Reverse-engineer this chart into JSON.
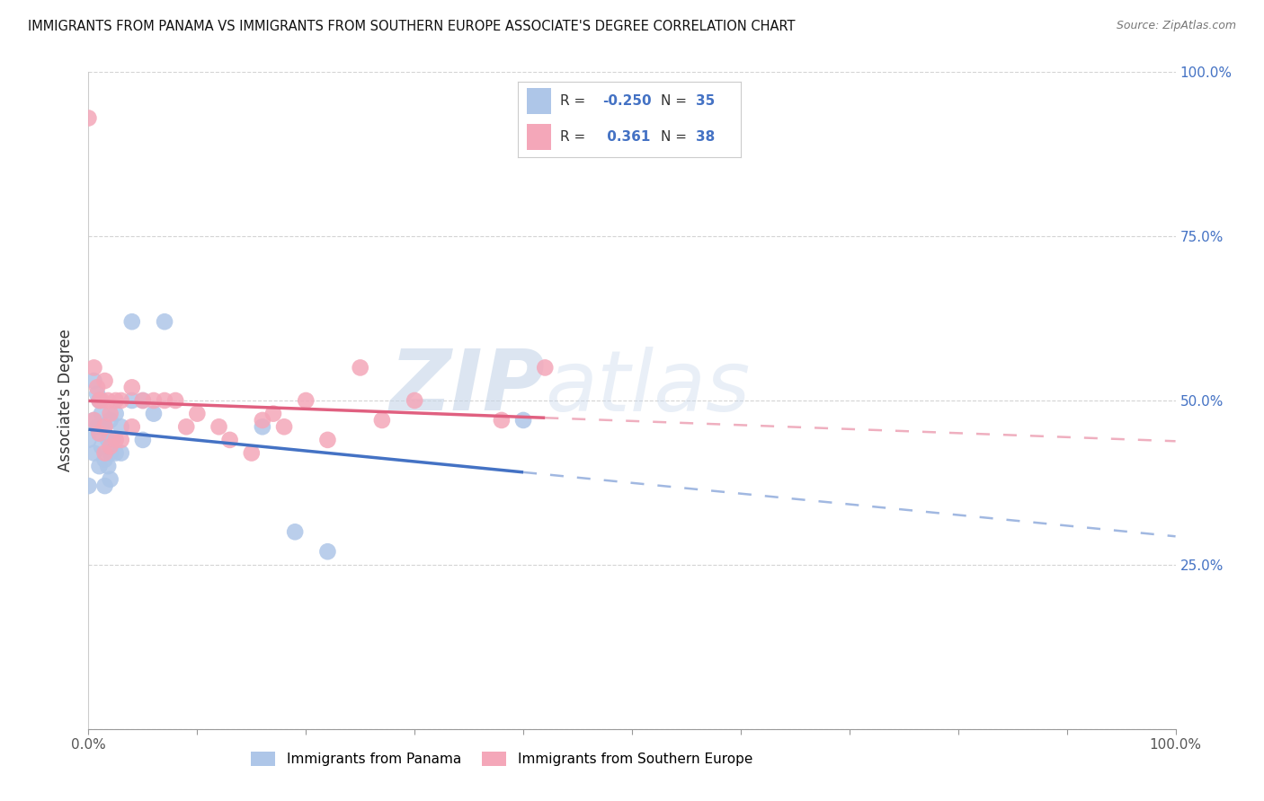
{
  "title": "IMMIGRANTS FROM PANAMA VS IMMIGRANTS FROM SOUTHERN EUROPE ASSOCIATE'S DEGREE CORRELATION CHART",
  "source": "Source: ZipAtlas.com",
  "ylabel": "Associate's Degree",
  "panama_R": -0.25,
  "panama_N": 35,
  "southern_europe_R": 0.361,
  "southern_europe_N": 38,
  "panama_color": "#aec6e8",
  "southern_europe_color": "#f4a7b9",
  "trend_panama_color": "#4472c4",
  "trend_southern_europe_color": "#e06080",
  "watermark_zip": "ZIP",
  "watermark_atlas": "atlas",
  "background_color": "#ffffff",
  "grid_color": "#d0d0d0",
  "panama_x": [
    0.0,
    0.0,
    0.005,
    0.005,
    0.005,
    0.008,
    0.008,
    0.01,
    0.01,
    0.01,
    0.012,
    0.012,
    0.015,
    0.015,
    0.015,
    0.018,
    0.018,
    0.02,
    0.02,
    0.02,
    0.022,
    0.025,
    0.025,
    0.03,
    0.03,
    0.04,
    0.04,
    0.05,
    0.05,
    0.06,
    0.07,
    0.16,
    0.19,
    0.22,
    0.4
  ],
  "panama_y": [
    0.44,
    0.37,
    0.53,
    0.47,
    0.42,
    0.51,
    0.46,
    0.5,
    0.45,
    0.4,
    0.48,
    0.43,
    0.46,
    0.41,
    0.37,
    0.44,
    0.4,
    0.47,
    0.42,
    0.38,
    0.44,
    0.48,
    0.42,
    0.46,
    0.42,
    0.62,
    0.5,
    0.5,
    0.44,
    0.48,
    0.62,
    0.46,
    0.3,
    0.27,
    0.47
  ],
  "southern_x": [
    0.0,
    0.005,
    0.005,
    0.008,
    0.01,
    0.01,
    0.012,
    0.015,
    0.015,
    0.015,
    0.018,
    0.02,
    0.02,
    0.025,
    0.025,
    0.03,
    0.03,
    0.04,
    0.04,
    0.05,
    0.06,
    0.07,
    0.08,
    0.09,
    0.1,
    0.12,
    0.13,
    0.15,
    0.16,
    0.17,
    0.18,
    0.2,
    0.22,
    0.25,
    0.27,
    0.3,
    0.38,
    0.42
  ],
  "southern_y": [
    0.93,
    0.55,
    0.47,
    0.52,
    0.5,
    0.45,
    0.5,
    0.53,
    0.46,
    0.42,
    0.5,
    0.48,
    0.43,
    0.5,
    0.44,
    0.5,
    0.44,
    0.52,
    0.46,
    0.5,
    0.5,
    0.5,
    0.5,
    0.46,
    0.48,
    0.46,
    0.44,
    0.42,
    0.47,
    0.48,
    0.46,
    0.5,
    0.44,
    0.55,
    0.47,
    0.5,
    0.47,
    0.55
  ],
  "xlim": [
    0.0,
    1.0
  ],
  "ylim": [
    0.0,
    1.0
  ]
}
